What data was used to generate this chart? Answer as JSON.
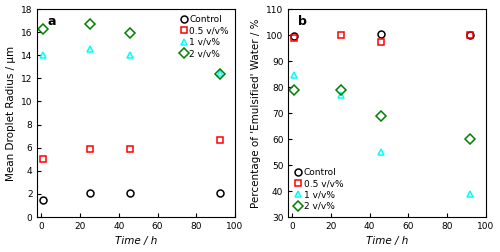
{
  "panel_a": {
    "label": "a",
    "xlabel": "Time / h",
    "ylabel": "Mean Droplet Radius / μm",
    "xlim": [
      -2,
      100
    ],
    "ylim": [
      0,
      18
    ],
    "yticks": [
      0,
      2,
      4,
      6,
      8,
      10,
      12,
      14,
      16,
      18
    ],
    "xticks": [
      0,
      20,
      40,
      60,
      80,
      100
    ],
    "legend_loc": "upper right",
    "series": [
      {
        "label": "Control",
        "color": "black",
        "marker": "o",
        "x": [
          1,
          25,
          46,
          92
        ],
        "y": [
          1.5,
          2.1,
          2.1,
          2.1
        ]
      },
      {
        "label": "0.5 v/v%",
        "color": "red",
        "marker": "s",
        "x": [
          1,
          25,
          46,
          92
        ],
        "y": [
          5.0,
          5.9,
          5.9,
          6.7
        ]
      },
      {
        "label": "1 v/v%",
        "color": "cyan",
        "marker": "^",
        "x": [
          1,
          25,
          46,
          92
        ],
        "y": [
          14.0,
          14.5,
          14.0,
          12.5
        ]
      },
      {
        "label": "2 v/v%",
        "color": "green",
        "marker": "D",
        "x": [
          1,
          25,
          46,
          92
        ],
        "y": [
          16.3,
          16.7,
          15.9,
          12.4
        ]
      }
    ]
  },
  "panel_b": {
    "label": "b",
    "xlabel": "Time / h",
    "ylabel": "Percentage of 'Emulsified' Water / %",
    "xlim": [
      -2,
      100
    ],
    "ylim": [
      30,
      110
    ],
    "yticks": [
      30,
      40,
      50,
      60,
      70,
      80,
      90,
      100,
      110
    ],
    "xticks": [
      0,
      20,
      40,
      60,
      80,
      100
    ],
    "legend_loc": "lower left",
    "series": [
      {
        "label": "Control",
        "color": "black",
        "marker": "o",
        "x": [
          1,
          46,
          92
        ],
        "y": [
          99.5,
          100.5,
          100.0
        ]
      },
      {
        "label": "0.5 v/v%",
        "color": "red",
        "marker": "s",
        "x": [
          1,
          25,
          46,
          92
        ],
        "y": [
          99.0,
          100.0,
          97.5,
          100.0
        ]
      },
      {
        "label": "1 v/v%",
        "color": "cyan",
        "marker": "^",
        "x": [
          1,
          25,
          46,
          92
        ],
        "y": [
          84.5,
          77.0,
          55.0,
          39.0
        ]
      },
      {
        "label": "2 v/v%",
        "color": "green",
        "marker": "D",
        "x": [
          1,
          25,
          46,
          92
        ],
        "y": [
          79.0,
          79.0,
          69.0,
          60.0
        ]
      }
    ]
  },
  "figure": {
    "bg_color": "white",
    "marker_size": 5,
    "markeredgewidth": 1.1,
    "legend_fontsize": 6.5,
    "axis_label_fontsize": 7.5,
    "tick_fontsize": 6.5,
    "panel_label_fontsize": 9,
    "spine_linewidth": 0.8
  }
}
